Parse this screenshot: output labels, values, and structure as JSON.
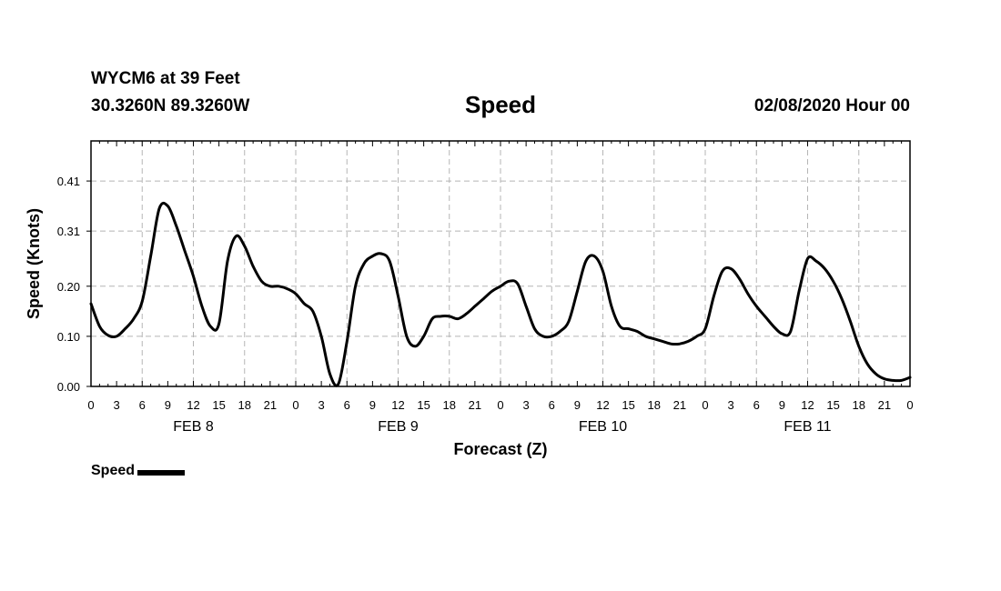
{
  "header": {
    "station": "WYCM6 at 39 Feet",
    "coords": "30.3260N 89.3260W",
    "title": "Speed",
    "date": "02/08/2020 Hour 00"
  },
  "chart_data": {
    "type": "line",
    "title": "Speed",
    "xlabel": "Forecast (Z)",
    "ylabel": "Speed (Knots)",
    "xlim": [
      0,
      96
    ],
    "ylim": [
      0,
      0.49
    ],
    "yticks": [
      0.0,
      0.1,
      0.2,
      0.31,
      0.41
    ],
    "ytick_labels": [
      "0.00",
      "0.10",
      "0.20",
      "0.31",
      "0.41"
    ],
    "xtick_labels": [
      "0",
      "3",
      "6",
      "9",
      "12",
      "15",
      "18",
      "21",
      "0",
      "3",
      "6",
      "9",
      "12",
      "15",
      "18",
      "21",
      "0",
      "3",
      "6",
      "9",
      "12",
      "15",
      "18",
      "21",
      "0",
      "3",
      "6",
      "9",
      "12",
      "15",
      "18",
      "21",
      "0"
    ],
    "day_labels": [
      {
        "label": "FEB 8",
        "x": 12
      },
      {
        "label": "FEB 9",
        "x": 36
      },
      {
        "label": "FEB 10",
        "x": 60
      },
      {
        "label": "FEB 11",
        "x": 84
      }
    ],
    "grid": true,
    "legend": "bottom-left",
    "series": [
      {
        "name": "Speed",
        "color": "#000000",
        "x": [
          0,
          1,
          2,
          3,
          4,
          5,
          6,
          7,
          8,
          9,
          10,
          11,
          12,
          13,
          14,
          15,
          16,
          17,
          18,
          19,
          20,
          21,
          22,
          23,
          24,
          25,
          26,
          27,
          28,
          29,
          30,
          31,
          32,
          33,
          34,
          35,
          36,
          37,
          38,
          39,
          40,
          41,
          42,
          43,
          44,
          45,
          46,
          47,
          48,
          49,
          50,
          51,
          52,
          53,
          54,
          55,
          56,
          57,
          58,
          59,
          60,
          61,
          62,
          63,
          64,
          65,
          66,
          67,
          68,
          69,
          70,
          71,
          72,
          73,
          74,
          75,
          76,
          77,
          78,
          79,
          80,
          81,
          82,
          83,
          84,
          85,
          86,
          87,
          88,
          89,
          90,
          91,
          92,
          93,
          94,
          95,
          96
        ],
        "values": [
          0.165,
          0.12,
          0.102,
          0.1,
          0.115,
          0.135,
          0.17,
          0.26,
          0.355,
          0.36,
          0.32,
          0.27,
          0.22,
          0.16,
          0.12,
          0.125,
          0.25,
          0.3,
          0.28,
          0.24,
          0.21,
          0.2,
          0.2,
          0.195,
          0.185,
          0.165,
          0.15,
          0.1,
          0.025,
          0.005,
          0.09,
          0.2,
          0.245,
          0.26,
          0.265,
          0.25,
          0.18,
          0.1,
          0.08,
          0.1,
          0.135,
          0.14,
          0.14,
          0.135,
          0.145,
          0.16,
          0.175,
          0.19,
          0.2,
          0.21,
          0.205,
          0.16,
          0.115,
          0.1,
          0.1,
          0.11,
          0.13,
          0.19,
          0.25,
          0.26,
          0.23,
          0.16,
          0.12,
          0.115,
          0.11,
          0.1,
          0.095,
          0.09,
          0.085,
          0.085,
          0.09,
          0.1,
          0.115,
          0.18,
          0.23,
          0.235,
          0.215,
          0.185,
          0.16,
          0.14,
          0.12,
          0.105,
          0.11,
          0.19,
          0.255,
          0.25,
          0.235,
          0.21,
          0.175,
          0.13,
          0.08,
          0.045,
          0.025,
          0.015,
          0.012,
          0.012,
          0.018
        ]
      }
    ]
  }
}
